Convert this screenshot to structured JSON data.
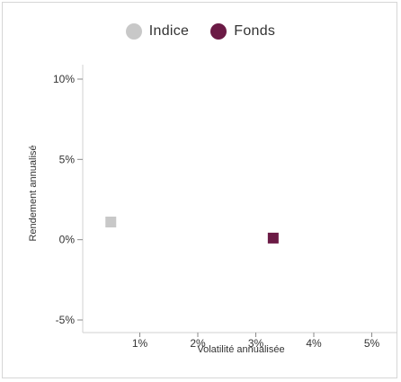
{
  "chart_data": {
    "type": "scatter",
    "xlabel": "Volatilité annualisée",
    "ylabel": "Rendement annualisé",
    "xlim": [
      0.0,
      5.0
    ],
    "ylim": [
      -5.0,
      10.0
    ],
    "x_ticks": [
      {
        "value": 1,
        "label": "1%"
      },
      {
        "value": 2,
        "label": "2%"
      },
      {
        "value": 3,
        "label": "3%"
      },
      {
        "value": 4,
        "label": "4%"
      },
      {
        "value": 5,
        "label": "5%"
      }
    ],
    "y_ticks": [
      {
        "value": 10,
        "label": "10%"
      },
      {
        "value": 5,
        "label": "5%"
      },
      {
        "value": 0,
        "label": "0%"
      },
      {
        "value": -5,
        "label": "-5%"
      }
    ],
    "grid": false,
    "legend_position": "top-center",
    "series": [
      {
        "name": "Indice",
        "color": "#c8c8c8",
        "marker": "square",
        "points": [
          {
            "x": 0.5,
            "y": 1.1
          }
        ]
      },
      {
        "name": "Fonds",
        "color": "#6b1a45",
        "marker": "square",
        "points": [
          {
            "x": 3.3,
            "y": 0.1
          }
        ]
      }
    ]
  }
}
